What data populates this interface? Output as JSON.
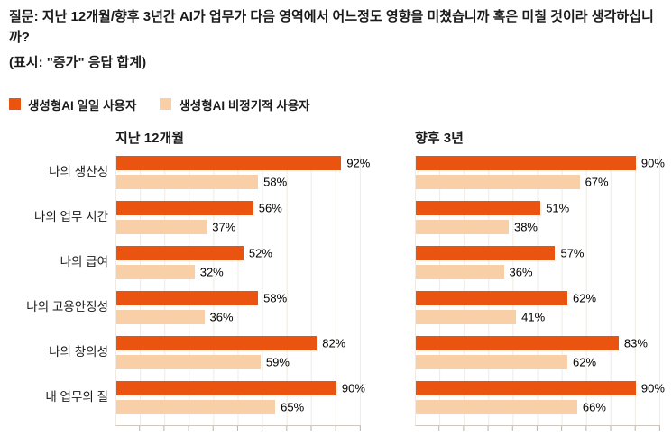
{
  "header": {
    "question": "질문: 지난 12개월/향후 3년간 AI가 업무가 다음 영역에서 어느정도 영향을 미쳤습니까 혹은 미칠 것이라 생각하십니까?",
    "note": "(표시: \"증가\" 응답 합계)"
  },
  "legend": [
    {
      "label": "생성형AI 일일 사용자",
      "color": "#EB5410"
    },
    {
      "label": "생성형AI 비정기적 사용자",
      "color": "#F9CFA7"
    }
  ],
  "chart_data": {
    "type": "bar",
    "orientation": "horizontal",
    "grid": true,
    "xlim": [
      0,
      100
    ],
    "value_suffix": "%",
    "colors": {
      "daily": "#EB5410",
      "occasional": "#F9CFA7"
    },
    "categories": [
      "나의 생산성",
      "나의 업무 시간",
      "나의 급여",
      "나의 고용안정성",
      "나의 창의성",
      "내 업무의 질"
    ],
    "panels": [
      {
        "title": "지난 12개월",
        "series": [
          {
            "name": "생성형AI 일일 사용자",
            "values": [
              92,
              56,
              52,
              58,
              82,
              90
            ]
          },
          {
            "name": "생성형AI 비정기적 사용자",
            "values": [
              58,
              37,
              32,
              36,
              59,
              65
            ]
          }
        ]
      },
      {
        "title": "향후 3년",
        "series": [
          {
            "name": "생성형AI 일일 사용자",
            "values": [
              90,
              51,
              57,
              62,
              83,
              90
            ]
          },
          {
            "name": "생성형AI 비정기적 사용자",
            "values": [
              67,
              38,
              36,
              41,
              62,
              66
            ]
          }
        ]
      }
    ]
  }
}
